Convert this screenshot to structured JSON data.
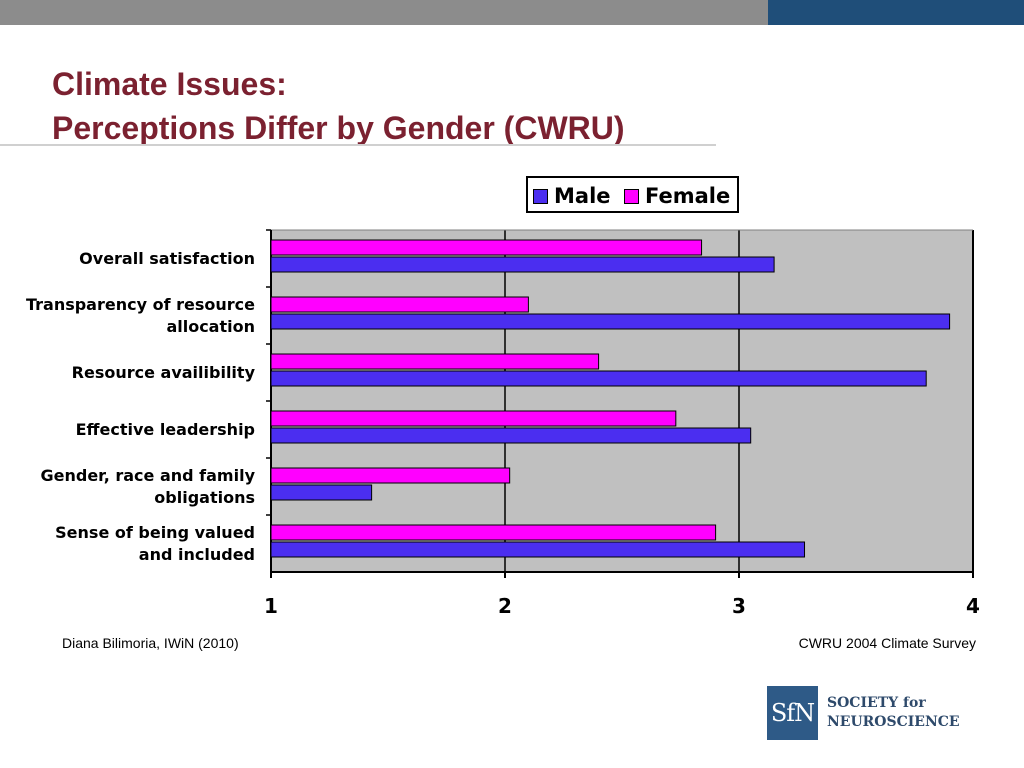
{
  "slide": {
    "title_line1": "Climate Issues:",
    "title_line2": "Perceptions Differ by Gender (CWRU)",
    "footer_left": "Diana Bilimoria, IWiN (2010)",
    "footer_right": "CWRU 2004 Climate Survey",
    "logo_mark": "SfN",
    "logo_line1": "SOCIETY for",
    "logo_line2": "NEUROSCIENCE",
    "colors": {
      "title": "#7b2130",
      "male": "#4b2ef0",
      "female": "#ff00ff",
      "plot_bg": "#c0c0c0"
    }
  },
  "chart_data": {
    "type": "bar",
    "orientation": "horizontal",
    "categories": [
      "Overall satisfaction",
      "Transparency of resource allocation",
      "Resource availibility",
      "Effective leadership",
      "Gender, race and family obligations",
      "Sense of being valued and included"
    ],
    "category_lines": [
      [
        "Overall satisfaction"
      ],
      [
        "Transparency of resource",
        "allocation"
      ],
      [
        "Resource availibility"
      ],
      [
        "Effective leadership"
      ],
      [
        "Gender, race and family",
        "obligations"
      ],
      [
        "Sense of being valued",
        "and included"
      ]
    ],
    "series": [
      {
        "name": "Male",
        "color": "#4b2ef0",
        "values": [
          3.15,
          3.9,
          3.8,
          3.05,
          1.43,
          3.28
        ]
      },
      {
        "name": "Female",
        "color": "#ff00ff",
        "values": [
          2.84,
          2.1,
          2.4,
          2.73,
          2.02,
          2.9
        ]
      }
    ],
    "xlim": [
      1,
      4
    ],
    "xticks": [
      "1",
      "2",
      "3",
      "4"
    ],
    "grid": true,
    "legend_position": "top"
  }
}
